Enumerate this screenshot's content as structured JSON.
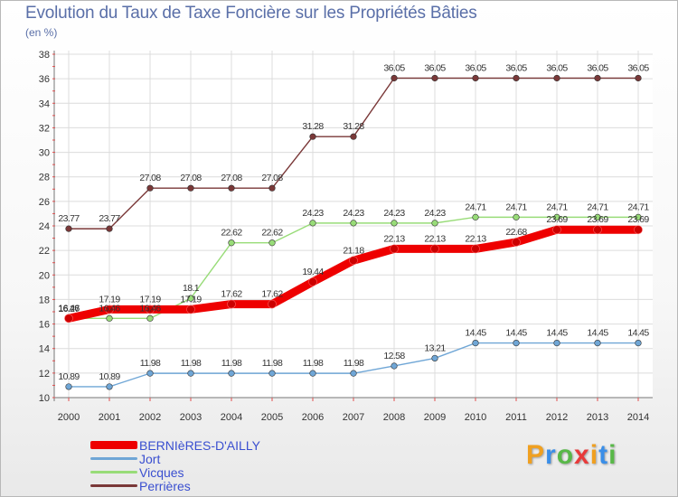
{
  "title": "Evolution du Taux de Taxe Foncière sur les Propriétés Bâties",
  "unit_label": "(en %)",
  "logo_text": "Proxiti",
  "logo_colors": [
    "#f0a020",
    "#3a8ee8",
    "#58b848",
    "#e83a3a",
    "#f0a020",
    "#3a8ee8",
    "#58b848"
  ],
  "chart_data": {
    "type": "line",
    "title": "Evolution du Taux de Taxe Foncière sur les Propriétés Bâties",
    "ylabel": "(en %)",
    "xlabel": "",
    "x": [
      "2000",
      "2001",
      "2002",
      "2003",
      "2004",
      "2005",
      "2006",
      "2007",
      "2008",
      "2009",
      "2010",
      "2011",
      "2012",
      "2013",
      "2014"
    ],
    "ylim": [
      10,
      38
    ],
    "yticks": [
      "10",
      "12",
      "14",
      "16",
      "18",
      "20",
      "22",
      "24",
      "26",
      "28",
      "30",
      "32",
      "34",
      "36",
      "38"
    ],
    "grid": true,
    "legend_position": "bottom-left",
    "series": [
      {
        "name": "BERNIèRES-D'AILLY",
        "color": "#ee0000",
        "thick": true,
        "values": [
          16.46,
          17.19,
          17.19,
          17.19,
          17.62,
          17.62,
          19.44,
          21.18,
          22.13,
          22.13,
          22.13,
          22.68,
          23.69,
          23.69,
          23.69
        ],
        "labels": [
          "16.46",
          "17.19",
          "17.19",
          "17.19",
          "17.62",
          "17.62",
          "19.44",
          "21.18",
          "22.13",
          "22.13",
          "22.13",
          "22.68",
          "23.69",
          "23.69",
          "23.69"
        ]
      },
      {
        "name": "Jort",
        "color": "#6fa6d6",
        "thick": false,
        "values": [
          10.89,
          10.89,
          11.98,
          11.98,
          11.98,
          11.98,
          11.98,
          11.98,
          12.58,
          13.21,
          14.45,
          14.45,
          14.45,
          14.45,
          14.45
        ],
        "labels": [
          "10.89",
          "10.89",
          "11.98",
          "11.98",
          "11.98",
          "11.98",
          "11.98",
          "11.98",
          "12.58",
          "13.21",
          "14.45",
          "14.45",
          "14.45",
          "14.45",
          "14.45"
        ]
      },
      {
        "name": "Vicques",
        "color": "#98dc78",
        "thick": false,
        "values": [
          16.46,
          16.46,
          16.46,
          18.1,
          22.62,
          22.62,
          24.23,
          24.23,
          24.23,
          24.23,
          24.71,
          24.71,
          24.71,
          24.71,
          24.71
        ],
        "labels": [
          "16.46",
          "16.46",
          "16.46",
          "18.1",
          "22.62",
          "22.62",
          "24.23",
          "24.23",
          "24.23",
          "24.23",
          "24.71",
          "24.71",
          "24.71",
          "24.71",
          "24.71"
        ]
      },
      {
        "name": "Perrières",
        "color": "#7a3838",
        "thick": false,
        "values": [
          23.77,
          23.77,
          27.08,
          27.08,
          27.08,
          27.08,
          31.28,
          31.28,
          36.05,
          36.05,
          36.05,
          36.05,
          36.05,
          36.05,
          36.05
        ],
        "labels": [
          "23.77",
          "23.77",
          "27.08",
          "27.08",
          "27.08",
          "27.08",
          "31.28",
          "31.28",
          "36.05",
          "36.05",
          "36.05",
          "36.05",
          "36.05",
          "36.05",
          "36.05"
        ]
      }
    ],
    "extra_annotations": [
      {
        "text": "16.27",
        "x": "2000",
        "y": 16.27
      }
    ]
  }
}
